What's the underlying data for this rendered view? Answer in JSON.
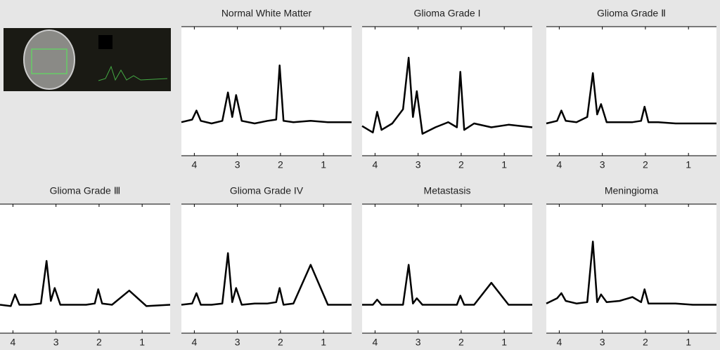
{
  "chart_data": [
    {
      "type": "line",
      "title": "Normal White Matter",
      "color": "#000000",
      "xlim": [
        4.3,
        0.35
      ],
      "xticks": [
        4,
        3,
        2,
        1
      ],
      "ylim": [
        0,
        1
      ],
      "x": [
        4.3,
        4.05,
        3.95,
        3.85,
        3.6,
        3.35,
        3.22,
        3.12,
        3.03,
        2.9,
        2.6,
        2.3,
        2.1,
        2.02,
        1.93,
        1.7,
        1.3,
        0.9,
        0.35
      ],
      "values": [
        0.26,
        0.28,
        0.35,
        0.27,
        0.25,
        0.27,
        0.49,
        0.3,
        0.47,
        0.27,
        0.25,
        0.27,
        0.28,
        0.7,
        0.27,
        0.26,
        0.27,
        0.26,
        0.26
      ]
    },
    {
      "type": "line",
      "title": "Glioma Grade I",
      "color": "#000000",
      "xlim": [
        4.3,
        0.35
      ],
      "xticks": [
        4,
        3,
        2,
        1
      ],
      "ylim": [
        0,
        1
      ],
      "x": [
        4.3,
        4.05,
        3.95,
        3.85,
        3.6,
        3.35,
        3.22,
        3.12,
        3.03,
        2.9,
        2.6,
        2.3,
        2.1,
        2.02,
        1.93,
        1.7,
        1.3,
        0.9,
        0.35
      ],
      "values": [
        0.23,
        0.18,
        0.34,
        0.2,
        0.25,
        0.36,
        0.76,
        0.3,
        0.5,
        0.17,
        0.22,
        0.26,
        0.22,
        0.65,
        0.2,
        0.25,
        0.22,
        0.24,
        0.22
      ]
    },
    {
      "type": "line",
      "title": "Glioma Grade Ⅱ",
      "color": "#000000",
      "xlim": [
        4.3,
        0.35
      ],
      "xticks": [
        4,
        3,
        2,
        1
      ],
      "ylim": [
        0,
        1
      ],
      "x": [
        4.3,
        4.05,
        3.95,
        3.85,
        3.6,
        3.35,
        3.22,
        3.12,
        3.03,
        2.9,
        2.6,
        2.3,
        2.1,
        2.02,
        1.93,
        1.7,
        1.3,
        0.9,
        0.35
      ],
      "values": [
        0.25,
        0.27,
        0.35,
        0.27,
        0.26,
        0.3,
        0.64,
        0.32,
        0.4,
        0.26,
        0.26,
        0.26,
        0.27,
        0.38,
        0.26,
        0.26,
        0.25,
        0.25,
        0.25
      ]
    },
    {
      "type": "line",
      "title": "Glioma Grade Ⅲ",
      "color": "#000000",
      "xlim": [
        4.3,
        0.35
      ],
      "xticks": [
        4,
        3,
        2,
        1
      ],
      "ylim": [
        0,
        1
      ],
      "x": [
        4.3,
        4.05,
        3.95,
        3.85,
        3.6,
        3.35,
        3.22,
        3.12,
        3.03,
        2.9,
        2.6,
        2.3,
        2.1,
        2.02,
        1.93,
        1.7,
        1.3,
        0.9,
        0.35
      ],
      "values": [
        0.22,
        0.21,
        0.3,
        0.22,
        0.22,
        0.23,
        0.56,
        0.25,
        0.35,
        0.22,
        0.22,
        0.22,
        0.23,
        0.34,
        0.23,
        0.22,
        0.33,
        0.21,
        0.22
      ]
    },
    {
      "type": "line",
      "title": "Glioma Grade IV",
      "color": "#000000",
      "xlim": [
        4.3,
        0.35
      ],
      "xticks": [
        4,
        3,
        2,
        1
      ],
      "ylim": [
        0,
        1
      ],
      "x": [
        4.3,
        4.05,
        3.95,
        3.85,
        3.6,
        3.35,
        3.22,
        3.12,
        3.03,
        2.9,
        2.6,
        2.3,
        2.1,
        2.02,
        1.93,
        1.7,
        1.3,
        0.9,
        0.35
      ],
      "values": [
        0.22,
        0.23,
        0.31,
        0.22,
        0.22,
        0.23,
        0.62,
        0.24,
        0.35,
        0.22,
        0.23,
        0.23,
        0.24,
        0.35,
        0.22,
        0.23,
        0.53,
        0.22,
        0.22
      ]
    },
    {
      "type": "line",
      "title": "Metastasis",
      "color": "#000000",
      "xlim": [
        4.3,
        0.35
      ],
      "xticks": [
        4,
        3,
        2,
        1
      ],
      "ylim": [
        0,
        1
      ],
      "x": [
        4.3,
        4.05,
        3.95,
        3.85,
        3.6,
        3.35,
        3.22,
        3.12,
        3.03,
        2.9,
        2.6,
        2.3,
        2.1,
        2.02,
        1.93,
        1.7,
        1.3,
        0.9,
        0.35
      ],
      "values": [
        0.22,
        0.22,
        0.26,
        0.22,
        0.22,
        0.22,
        0.53,
        0.23,
        0.27,
        0.22,
        0.22,
        0.22,
        0.22,
        0.29,
        0.22,
        0.22,
        0.39,
        0.22,
        0.22
      ]
    },
    {
      "type": "line",
      "title": "Meningioma",
      "color": "#000000",
      "xlim": [
        4.3,
        0.35
      ],
      "xticks": [
        4,
        3,
        2,
        1
      ],
      "ylim": [
        0,
        1
      ],
      "x": [
        4.3,
        4.05,
        3.95,
        3.85,
        3.6,
        3.35,
        3.22,
        3.12,
        3.03,
        2.9,
        2.6,
        2.3,
        2.1,
        2.02,
        1.93,
        1.7,
        1.3,
        0.9,
        0.35
      ],
      "values": [
        0.23,
        0.27,
        0.31,
        0.25,
        0.23,
        0.24,
        0.71,
        0.24,
        0.3,
        0.24,
        0.25,
        0.28,
        0.24,
        0.34,
        0.23,
        0.23,
        0.23,
        0.22,
        0.22
      ]
    }
  ]
}
